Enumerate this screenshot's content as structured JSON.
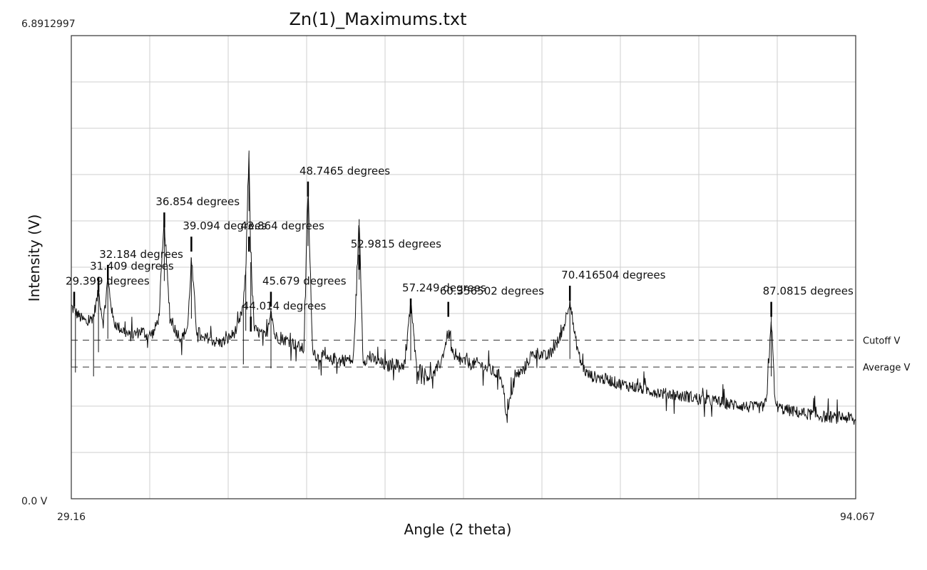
{
  "chart_data": {
    "type": "line",
    "title": "Zn(1)_Maximums.txt",
    "xlabel": "Angle (2 theta)",
    "ylabel": "Intensity (V)",
    "xlim": [
      29.16,
      94.067
    ],
    "ylim": [
      0.0,
      6.8912997
    ],
    "x_min_label": "29.16",
    "x_max_label": "94.067",
    "y_min_label": "0.0 V",
    "y_max_label": "6.8912997",
    "grid": true,
    "grid_divisions": {
      "x": 10,
      "y": 10
    },
    "series": [
      {
        "points": [
          [
            29.16,
            2.86
          ],
          [
            29.5,
            2.78
          ],
          [
            30.0,
            2.68
          ],
          [
            30.5,
            2.62
          ],
          [
            31.0,
            2.72
          ],
          [
            31.409,
            3.08
          ],
          [
            31.8,
            2.62
          ],
          [
            32.184,
            3.28
          ],
          [
            32.6,
            2.68
          ],
          [
            33.0,
            2.56
          ],
          [
            33.5,
            2.5
          ],
          [
            34.0,
            2.42
          ],
          [
            34.5,
            2.46
          ],
          [
            35.0,
            2.5
          ],
          [
            35.5,
            2.42
          ],
          [
            36.0,
            2.48
          ],
          [
            36.4,
            2.7
          ],
          [
            36.854,
            4.14
          ],
          [
            37.3,
            2.7
          ],
          [
            37.8,
            2.5
          ],
          [
            38.3,
            2.38
          ],
          [
            38.8,
            2.56
          ],
          [
            39.094,
            3.58
          ],
          [
            39.5,
            2.58
          ],
          [
            40.0,
            2.36
          ],
          [
            40.5,
            2.4
          ],
          [
            41.0,
            2.34
          ],
          [
            41.5,
            2.32
          ],
          [
            42.0,
            2.36
          ],
          [
            42.5,
            2.44
          ],
          [
            43.0,
            2.56
          ],
          [
            43.4,
            2.9
          ],
          [
            43.6,
            3.4
          ],
          [
            43.864,
            5.18
          ],
          [
            44.014,
            3.52
          ],
          [
            44.3,
            2.52
          ],
          [
            44.8,
            2.46
          ],
          [
            45.3,
            2.4
          ],
          [
            45.679,
            2.84
          ],
          [
            46.0,
            2.42
          ],
          [
            46.5,
            2.38
          ],
          [
            47.0,
            2.36
          ],
          [
            47.5,
            2.32
          ],
          [
            48.0,
            2.26
          ],
          [
            48.4,
            2.22
          ],
          [
            48.7465,
            4.66
          ],
          [
            49.1,
            2.26
          ],
          [
            49.5,
            2.1
          ],
          [
            50.0,
            2.12
          ],
          [
            50.5,
            2.04
          ],
          [
            51.0,
            2.1
          ],
          [
            51.5,
            2.04
          ],
          [
            52.0,
            2.08
          ],
          [
            52.5,
            2.04
          ],
          [
            52.9815,
            4.16
          ],
          [
            53.3,
            2.06
          ],
          [
            53.8,
            2.1
          ],
          [
            54.3,
            2.06
          ],
          [
            54.8,
            2.02
          ],
          [
            55.3,
            1.96
          ],
          [
            55.8,
            2.02
          ],
          [
            56.3,
            1.98
          ],
          [
            56.8,
            2.0
          ],
          [
            57.249,
            2.96
          ],
          [
            57.7,
            1.98
          ],
          [
            58.2,
            1.9
          ],
          [
            58.7,
            1.82
          ],
          [
            59.2,
            1.86
          ],
          [
            59.8,
            2.06
          ],
          [
            60.356502,
            2.48
          ],
          [
            60.8,
            2.08
          ],
          [
            61.3,
            2.06
          ],
          [
            61.8,
            2.04
          ],
          [
            62.3,
            2.0
          ],
          [
            62.8,
            2.02
          ],
          [
            63.3,
            1.96
          ],
          [
            63.8,
            1.92
          ],
          [
            64.3,
            1.86
          ],
          [
            64.8,
            1.82
          ],
          [
            65.2,
            1.18
          ],
          [
            65.6,
            1.6
          ],
          [
            66.0,
            1.84
          ],
          [
            66.5,
            1.9
          ],
          [
            67.0,
            2.06
          ],
          [
            67.5,
            2.18
          ],
          [
            68.0,
            2.16
          ],
          [
            68.5,
            2.1
          ],
          [
            69.0,
            2.22
          ],
          [
            69.5,
            2.36
          ],
          [
            70.0,
            2.62
          ],
          [
            70.416504,
            2.98
          ],
          [
            70.8,
            2.44
          ],
          [
            71.3,
            2.04
          ],
          [
            71.8,
            1.86
          ],
          [
            72.3,
            1.82
          ],
          [
            72.8,
            1.8
          ],
          [
            73.3,
            1.78
          ],
          [
            73.8,
            1.76
          ],
          [
            74.3,
            1.72
          ],
          [
            74.8,
            1.7
          ],
          [
            75.3,
            1.68
          ],
          [
            75.8,
            1.66
          ],
          [
            76.3,
            1.64
          ],
          [
            76.8,
            1.62
          ],
          [
            77.3,
            1.6
          ],
          [
            77.8,
            1.58
          ],
          [
            78.3,
            1.56
          ],
          [
            78.8,
            1.56
          ],
          [
            79.3,
            1.54
          ],
          [
            79.8,
            1.52
          ],
          [
            80.3,
            1.52
          ],
          [
            80.8,
            1.5
          ],
          [
            81.3,
            1.48
          ],
          [
            81.8,
            1.46
          ],
          [
            82.3,
            1.46
          ],
          [
            82.8,
            1.44
          ],
          [
            83.3,
            1.42
          ],
          [
            83.8,
            1.4
          ],
          [
            84.3,
            1.4
          ],
          [
            84.8,
            1.38
          ],
          [
            85.3,
            1.36
          ],
          [
            85.8,
            1.36
          ],
          [
            86.3,
            1.36
          ],
          [
            86.7,
            1.44
          ],
          [
            87.0815,
            2.72
          ],
          [
            87.4,
            1.4
          ],
          [
            87.9,
            1.34
          ],
          [
            88.4,
            1.32
          ],
          [
            88.9,
            1.3
          ],
          [
            89.4,
            1.28
          ],
          [
            89.9,
            1.26
          ],
          [
            90.4,
            1.26
          ],
          [
            90.9,
            1.24
          ],
          [
            91.4,
            1.22
          ],
          [
            91.9,
            1.22
          ],
          [
            92.4,
            1.2
          ],
          [
            92.9,
            1.22
          ],
          [
            93.5,
            1.2
          ],
          [
            94.067,
            1.14
          ]
        ],
        "noise_amplitude": 0.09
      }
    ],
    "reference_lines": [
      {
        "label": "Cutoff V",
        "y": 2.36
      },
      {
        "label": "Average V",
        "y": 1.96
      }
    ],
    "peak_labels": [
      {
        "x": 29.399,
        "label": "29.399 degrees",
        "marker_y": 3.08
      },
      {
        "x": 31.409,
        "label": "31.409 degrees",
        "marker_y": 3.3
      },
      {
        "x": 32.184,
        "label": "32.184 degrees",
        "marker_y": 3.48
      },
      {
        "x": 36.854,
        "label": "36.854 degrees",
        "marker_y": 4.26
      },
      {
        "x": 39.094,
        "label": "39.094 degrees",
        "marker_y": 3.9
      },
      {
        "x": 43.864,
        "label": "43.864 degrees",
        "marker_y": 3.9
      },
      {
        "x": 44.014,
        "label": "44.014 degrees",
        "marker_y": 2.71
      },
      {
        "x": 45.679,
        "label": "45.679 degrees",
        "marker_y": 3.08
      },
      {
        "x": 48.7465,
        "label": "48.7465 degrees",
        "marker_y": 4.72
      },
      {
        "x": 52.9815,
        "label": "52.9815 degrees",
        "marker_y": 3.63
      },
      {
        "x": 57.249,
        "label": "57.249 degrees",
        "marker_y": 2.98
      },
      {
        "x": 60.356502,
        "label": "60.356502 degrees",
        "marker_y": 2.93
      },
      {
        "x": 70.416504,
        "label": "70.416504 degrees",
        "marker_y": 3.17
      },
      {
        "x": 87.0815,
        "label": "87.0815 degrees",
        "marker_y": 2.93
      }
    ]
  }
}
